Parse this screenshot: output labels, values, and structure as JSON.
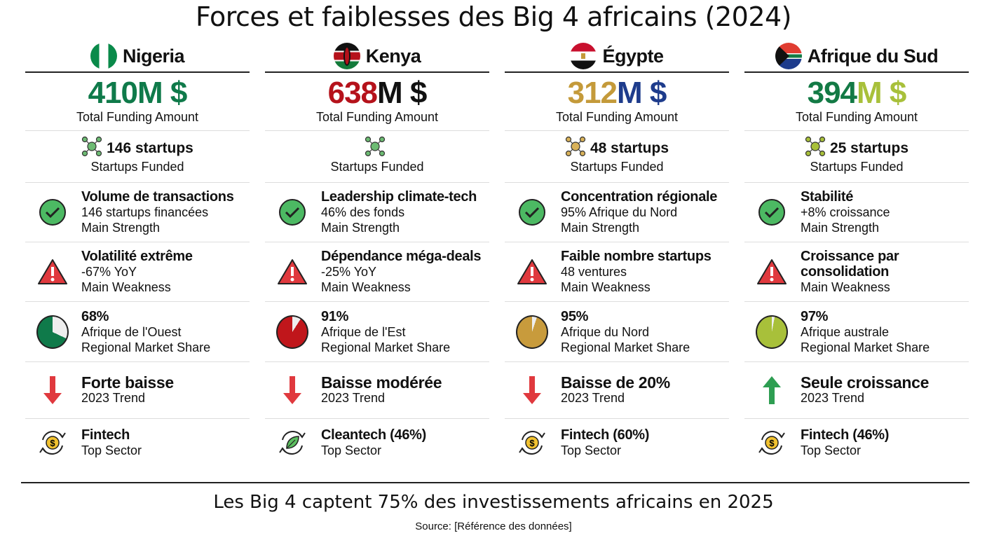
{
  "title": "Forces et faiblesses des Big 4 africains (2024)",
  "footer": "Les Big 4 captent 75% des investissements africains en 2025",
  "source": "Source: [Référence des données]",
  "columns": [
    {
      "country": "Nigeria",
      "flag": "nigeria",
      "amount_num": "410",
      "amount_unit": "M $",
      "num_color": "#0f7a4a",
      "unit_color": "#0f7a4a",
      "funding_label": "Total Funding Amount",
      "startups": "146 startups",
      "startups_label": "Startups Funded",
      "icon_color": "#6dbb73",
      "strength": {
        "title": "Volume de transactions",
        "detail": "146 startups financées",
        "label": "Main Strength"
      },
      "weakness": {
        "title": "Volatilité extrême",
        "detail": "-67% YoY",
        "label": "Main Weakness"
      },
      "share": {
        "pct": "68%",
        "value": 68,
        "region": "Afrique de l'Ouest",
        "label": "Regional Market Share",
        "color": "#0f7a4a"
      },
      "trend": {
        "title": "Forte baisse",
        "label": "2023 Trend",
        "direction": "down"
      },
      "sector": {
        "title": "Fintech",
        "label": "Top Sector",
        "icon": "dollar-coin"
      }
    },
    {
      "country": "Kenya",
      "flag": "kenya",
      "amount_num": "638",
      "amount_unit": "M $",
      "num_color": "#b5121b",
      "unit_color": "#111111",
      "funding_label": "Total Funding Amount",
      "startups": "",
      "startups_label": "Startups Funded",
      "icon_color": "#6dbb73",
      "strength": {
        "title": "Leadership climate-tech",
        "detail": "46% des fonds",
        "label": "Main Strength"
      },
      "weakness": {
        "title": "Dépendance méga-deals",
        "detail": "-25% YoY",
        "label": "Main Weakness"
      },
      "share": {
        "pct": "91%",
        "value": 91,
        "region": "Afrique de l'Est",
        "label": "Regional Market Share",
        "color": "#c0161b"
      },
      "trend": {
        "title": "Baisse modérée",
        "label": "2023 Trend",
        "direction": "down"
      },
      "sector": {
        "title": "Cleantech (46%)",
        "label": "Top Sector",
        "icon": "leaf"
      }
    },
    {
      "country": "Égypte",
      "flag": "egypt",
      "amount_num": "312",
      "amount_unit": "M $",
      "num_color": "#c49a3a",
      "unit_color": "#1e3c8c",
      "funding_label": "Total Funding Amount",
      "startups": "48 startups",
      "startups_label": "Startups Funded",
      "icon_color": "#d9b25a",
      "strength": {
        "title": "Concentration régionale",
        "detail": "95% Afrique du Nord",
        "label": "Main Strength"
      },
      "weakness": {
        "title": "Faible nombre startups",
        "detail": "48 ventures",
        "label": "Main Weakness"
      },
      "share": {
        "pct": "95%",
        "value": 95,
        "region": "Afrique du Nord",
        "label": "Regional Market Share",
        "color": "#c89b3c"
      },
      "trend": {
        "title": "Baisse de 20%",
        "label": "2023 Trend",
        "direction": "down"
      },
      "sector": {
        "title": "Fintech (60%)",
        "label": "Top Sector",
        "icon": "dollar-coin"
      }
    },
    {
      "country": "Afrique du Sud",
      "flag": "south-africa",
      "amount_num": "394",
      "amount_unit": "M $",
      "num_color": "#137a45",
      "unit_color": "#a8c03a",
      "funding_label": "Total Funding Amount",
      "startups": "25 startups",
      "startups_label": "Startups Funded",
      "icon_color": "#a8c03a",
      "strength": {
        "title": "Stabilité",
        "detail": "+8% croissance",
        "label": "Main Strength"
      },
      "weakness": {
        "title": "Croissance par consolidation",
        "detail": "",
        "label": "Main Weakness"
      },
      "share": {
        "pct": "97%",
        "value": 97,
        "region": "Afrique australe",
        "label": "Regional Market Share",
        "color": "#a8c03a"
      },
      "trend": {
        "title": "Seule croissance",
        "label": "2023 Trend",
        "direction": "up"
      },
      "sector": {
        "title": "Fintech (46%)",
        "label": "Top Sector",
        "icon": "dollar-coin"
      }
    }
  ]
}
